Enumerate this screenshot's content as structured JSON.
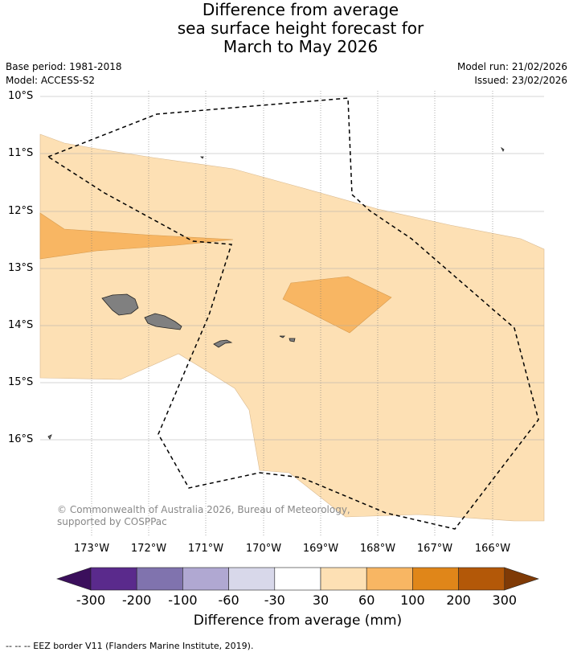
{
  "title": {
    "line1": "Difference from average",
    "line2": "sea surface height forecast for",
    "line3": "March to May 2026"
  },
  "meta": {
    "base_period": "Base period: 1981-2018",
    "model": "Model: ACCESS-S2",
    "model_run": "Model run: 21/02/2026",
    "issued": "Issued: 23/02/2026"
  },
  "copyright": "© Commonwealth of Australia 2026, Bureau of Meteorology, supported by COSPPac",
  "lat_labels": [
    "10°S",
    "11°S",
    "12°S",
    "13°S",
    "14°S",
    "15°S",
    "16°S"
  ],
  "lon_labels": [
    "173°W",
    "172°W",
    "171°W",
    "170°W",
    "169°W",
    "168°W",
    "167°W",
    "166°W"
  ],
  "colorbar": {
    "title": "Difference from average (mm)",
    "ticks": [
      "-300",
      "-200",
      "-100",
      "-60",
      "-30",
      "30",
      "60",
      "100",
      "200",
      "300"
    ],
    "colors": [
      "#3b0f5c",
      "#5a2a8c",
      "#8073ae",
      "#b0a8d2",
      "#d8d8ea",
      "#ffffff",
      "#fde0b4",
      "#f8b663",
      "#e08619",
      "#b35808",
      "#7f3a06"
    ]
  },
  "legend": {
    "eez": "-- -- -- EEZ border V11 (Flanders Marine Institute, 2019)."
  }
}
